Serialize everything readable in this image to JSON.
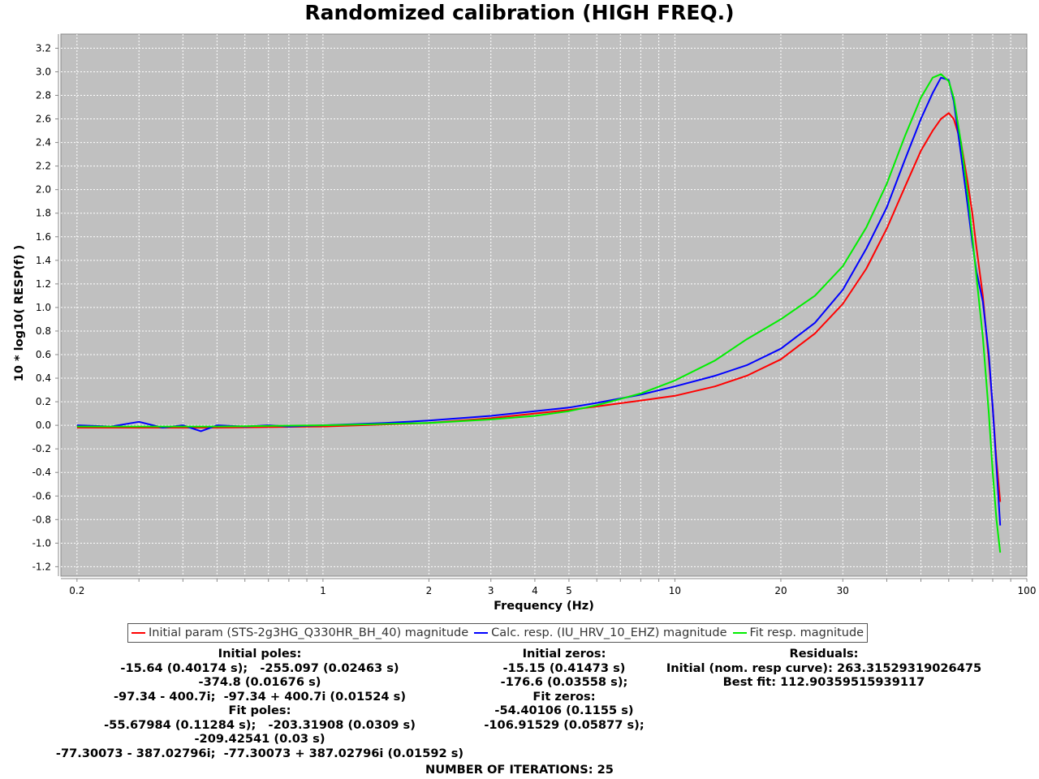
{
  "chart_data": {
    "type": "line",
    "title": "Randomized calibration (HIGH FREQ.)",
    "xlabel": "Frequency (Hz)",
    "ylabel": "10 * log10( RESP(f) )",
    "x_scale": "log",
    "xlim": [
      0.18,
      100
    ],
    "ylim": [
      -1.28,
      3.32
    ],
    "grid": true,
    "legend_position": "bottom",
    "x_ticks": [
      0.2,
      1,
      2,
      3,
      4,
      5,
      10,
      20,
      30,
      100
    ],
    "x_tick_labels": [
      "0.2",
      "1",
      "2",
      "3",
      "4",
      "5",
      "10",
      "20",
      "30",
      "100"
    ],
    "y_ticks": [
      -1.2,
      -1.0,
      -0.8,
      -0.6,
      -0.4,
      -0.2,
      0.0,
      0.2,
      0.4,
      0.6,
      0.8,
      1.0,
      1.2,
      1.4,
      1.6,
      1.8,
      2.0,
      2.2,
      2.4,
      2.6,
      2.8,
      3.0,
      3.2
    ],
    "series": [
      {
        "name": "Initial param (STS-2g3HG_Q330HR_BH_40) magnitude",
        "color": "#ff0000",
        "x": [
          0.2,
          0.5,
          1,
          2,
          3,
          4,
          5,
          6,
          8,
          10,
          13,
          16,
          20,
          25,
          30,
          35,
          40,
          45,
          50,
          54,
          57,
          60,
          62,
          65,
          68,
          70,
          72,
          75,
          78,
          80,
          82,
          84
        ],
        "y": [
          -0.02,
          -0.02,
          -0.01,
          0.02,
          0.06,
          0.1,
          0.13,
          0.16,
          0.21,
          0.25,
          0.33,
          0.42,
          0.56,
          0.78,
          1.03,
          1.33,
          1.67,
          2.02,
          2.33,
          2.5,
          2.6,
          2.65,
          2.6,
          2.4,
          2.05,
          1.8,
          1.5,
          1.1,
          0.55,
          0.15,
          -0.3,
          -0.65
        ]
      },
      {
        "name": "Calc. resp. (IU_HRV_10_EHZ) magnitude",
        "color": "#0000ff",
        "x": [
          0.2,
          0.25,
          0.3,
          0.35,
          0.4,
          0.45,
          0.5,
          0.6,
          0.7,
          0.8,
          1,
          1.5,
          2,
          3,
          4,
          5,
          6,
          8,
          10,
          13,
          16,
          20,
          25,
          30,
          35,
          40,
          45,
          50,
          54,
          57,
          60,
          62,
          65,
          68,
          70,
          72,
          75,
          78,
          80,
          82,
          84
        ],
        "y": [
          0.0,
          -0.01,
          0.03,
          -0.02,
          0.0,
          -0.05,
          0.0,
          -0.01,
          0.0,
          -0.01,
          0.0,
          0.02,
          0.04,
          0.08,
          0.12,
          0.15,
          0.19,
          0.26,
          0.33,
          0.42,
          0.51,
          0.65,
          0.87,
          1.15,
          1.5,
          1.85,
          2.25,
          2.6,
          2.82,
          2.95,
          2.93,
          2.75,
          2.3,
          1.85,
          1.55,
          1.3,
          1.05,
          0.6,
          0.15,
          -0.35,
          -0.85
        ]
      },
      {
        "name": "Fit resp. magnitude",
        "color": "#00ee00",
        "x": [
          0.2,
          0.5,
          1,
          2,
          3,
          4,
          5,
          6,
          8,
          10,
          13,
          16,
          20,
          25,
          30,
          35,
          40,
          45,
          50,
          54,
          57,
          60,
          62,
          65,
          68,
          70,
          72,
          75,
          78,
          80,
          82,
          84
        ],
        "y": [
          -0.01,
          -0.01,
          0.0,
          0.02,
          0.05,
          0.08,
          0.12,
          0.17,
          0.27,
          0.38,
          0.55,
          0.73,
          0.9,
          1.1,
          1.35,
          1.68,
          2.05,
          2.45,
          2.78,
          2.95,
          2.98,
          2.92,
          2.78,
          2.4,
          1.95,
          1.6,
          1.25,
          0.75,
          0.1,
          -0.4,
          -0.8,
          -1.08
        ]
      }
    ]
  },
  "info": {
    "initial_poles": {
      "header": "Initial poles:",
      "lines": [
        "-15.64 (0.40174 s);   -255.097 (0.02463 s)",
        "-374.8 (0.01676 s)",
        "-97.34 - 400.7i;  -97.34 + 400.7i (0.01524 s)"
      ]
    },
    "fit_poles": {
      "header": "Fit poles:",
      "lines": [
        "-55.67984 (0.11284 s);   -203.31908 (0.0309 s)",
        "-209.42541 (0.03 s)",
        "-77.30073 - 387.02796i;  -77.30073 + 387.02796i (0.01592 s)"
      ]
    },
    "initial_zeros": {
      "header": "Initial zeros:",
      "lines": [
        "-15.15 (0.41473 s)",
        "-176.6 (0.03558 s);"
      ]
    },
    "fit_zeros": {
      "header": "Fit zeros:",
      "lines": [
        "-54.40106 (0.1155 s)",
        "-106.91529 (0.05877 s);"
      ]
    },
    "residuals": {
      "header": "Residuals:",
      "initial": "Initial (nom. resp curve): 263.31529319026475",
      "best_fit": "Best fit: 112.90359515939117"
    },
    "iterations": "NUMBER OF ITERATIONS: 25"
  }
}
